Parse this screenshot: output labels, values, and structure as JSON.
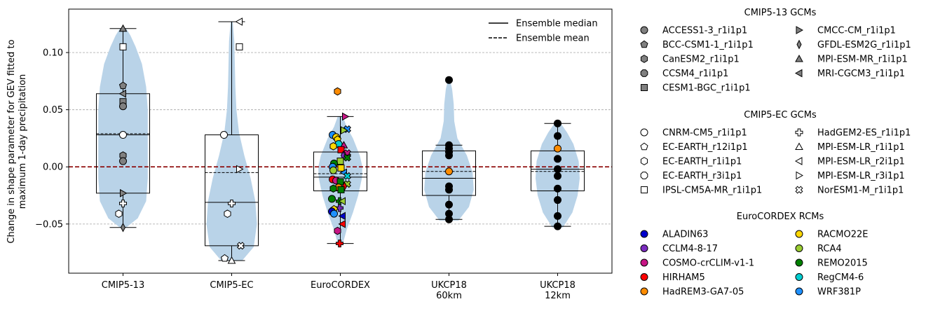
{
  "chart_data": {
    "type": "violin",
    "ylabel_line1": "Change in shape parameter for GEV fitted to",
    "ylabel_line2": "maximum 1-day precipitation",
    "categories": [
      {
        "label": "CMIP5-13",
        "label2": ""
      },
      {
        "label": "CMIP5-EC",
        "label2": ""
      },
      {
        "label": "EuroCORDEX",
        "label2": ""
      },
      {
        "label": "UKCP18",
        "label2": "60km"
      },
      {
        "label": "UKCP18",
        "label2": "12km"
      }
    ],
    "ylim": [
      -0.093,
      0.138
    ],
    "yticks": [
      -0.05,
      0.0,
      0.05,
      0.1
    ],
    "ytick_labels": [
      "−0.05",
      "0.00",
      "0.05",
      "0.10"
    ],
    "grid": "horizontal dashed",
    "zero_line_color": "#8b0000",
    "violin_color": "#b9d3e8",
    "boxes": [
      {
        "q1": -0.023,
        "median": 0.028,
        "mean": 0.029,
        "q3": 0.064,
        "whislo": -0.053,
        "whishi": 0.121
      },
      {
        "q1": -0.069,
        "median": -0.031,
        "mean": -0.005,
        "q3": 0.028,
        "whislo": -0.082,
        "whishi": 0.127
      },
      {
        "q1": -0.021,
        "median": -0.009,
        "mean": -0.006,
        "q3": 0.013,
        "whislo": -0.067,
        "whishi": 0.044
      },
      {
        "q1": -0.025,
        "median": -0.01,
        "mean": -0.004,
        "q3": 0.014,
        "whislo": -0.046,
        "whishi": 0.019
      },
      {
        "q1": -0.021,
        "median": -0.002,
        "mean": -0.004,
        "q3": 0.014,
        "whislo": -0.052,
        "whishi": 0.038
      }
    ],
    "violins": [
      {
        "ys": [
          -0.053,
          -0.045,
          -0.03,
          -0.01,
          0.01,
          0.03,
          0.05,
          0.07,
          0.09,
          0.105,
          0.115,
          0.121
        ],
        "ws": [
          0.06,
          0.28,
          0.44,
          0.47,
          0.47,
          0.47,
          0.47,
          0.44,
          0.36,
          0.24,
          0.14,
          0.06
        ]
      },
      {
        "ys": [
          -0.082,
          -0.07,
          -0.05,
          -0.03,
          -0.01,
          0.01,
          0.03,
          0.05,
          0.07,
          0.09,
          0.11,
          0.127
        ],
        "ws": [
          0.2,
          0.42,
          0.48,
          0.45,
          0.36,
          0.24,
          0.14,
          0.09,
          0.07,
          0.06,
          0.05,
          0.02
        ]
      },
      {
        "ys": [
          -0.067,
          -0.055,
          -0.04,
          -0.025,
          -0.01,
          0.0,
          0.01,
          0.025,
          0.035,
          0.044
        ],
        "ws": [
          0.05,
          0.12,
          0.24,
          0.34,
          0.41,
          0.42,
          0.37,
          0.24,
          0.12,
          0.05
        ]
      },
      {
        "ys": [
          -0.047,
          -0.035,
          -0.02,
          -0.005,
          0.01,
          0.025,
          0.04,
          0.055,
          0.068,
          0.076
        ],
        "ws": [
          0.18,
          0.38,
          0.47,
          0.45,
          0.34,
          0.16,
          0.1,
          0.09,
          0.06,
          0.02
        ]
      },
      {
        "ys": [
          -0.053,
          -0.04,
          -0.025,
          -0.01,
          0.005,
          0.02,
          0.03,
          0.038
        ],
        "ws": [
          0.1,
          0.28,
          0.38,
          0.42,
          0.4,
          0.3,
          0.18,
          0.06
        ]
      }
    ],
    "points": [
      [
        {
          "y": 0.121,
          "marker": "tri_up",
          "fill": "#808080"
        },
        {
          "y": 0.105,
          "marker": "square",
          "fill": "#ffffff"
        },
        {
          "y": 0.071,
          "marker": "pentagon",
          "fill": "#808080"
        },
        {
          "y": 0.064,
          "marker": "tri_left",
          "fill": "#808080"
        },
        {
          "y": 0.057,
          "marker": "square",
          "fill": "#808080"
        },
        {
          "y": 0.053,
          "marker": "circle",
          "fill": "#808080"
        },
        {
          "y": 0.028,
          "marker": "circle",
          "fill": "#ffffff"
        },
        {
          "y": 0.01,
          "marker": "hexagon",
          "fill": "#808080"
        },
        {
          "y": 0.005,
          "marker": "circle",
          "fill": "#808080"
        },
        {
          "y": -0.023,
          "marker": "tri_right",
          "fill": "#808080"
        },
        {
          "y": -0.032,
          "marker": "plus",
          "fill": "#ffffff"
        },
        {
          "y": -0.041,
          "marker": "hexagon",
          "fill": "#ffffff",
          "dx": -0.12
        },
        {
          "y": -0.053,
          "marker": "diamond",
          "fill": "#808080"
        }
      ],
      [
        {
          "y": 0.127,
          "marker": "tri_left",
          "fill": "#ffffff",
          "dx": 0.22
        },
        {
          "y": 0.105,
          "marker": "square",
          "fill": "#ffffff",
          "dx": 0.22
        },
        {
          "y": 0.028,
          "marker": "circle",
          "fill": "#ffffff",
          "dx": -0.22
        },
        {
          "y": -0.002,
          "marker": "tri_right",
          "fill": "#ffffff",
          "dx": 0.22
        },
        {
          "y": -0.032,
          "marker": "plus",
          "fill": "#ffffff",
          "dx": 0.0
        },
        {
          "y": -0.041,
          "marker": "hexagon",
          "fill": "#ffffff",
          "dx": -0.12
        },
        {
          "y": -0.069,
          "marker": "cross",
          "fill": "#ffffff",
          "dx": 0.26
        },
        {
          "y": -0.08,
          "marker": "pentagon",
          "fill": "#ffffff",
          "dx": -0.2
        },
        {
          "y": -0.082,
          "marker": "tri_up",
          "fill": "#ffffff",
          "dx": 0.0
        }
      ],
      [
        {
          "y": 0.066,
          "marker": "hexagon",
          "fill": "#ff8c00",
          "dx": -0.08
        },
        {
          "y": 0.044,
          "marker": "tri_right",
          "fill": "#c71585",
          "dx": 0.14
        },
        {
          "y": 0.033,
          "marker": "cross",
          "fill": "#1e90ff",
          "dx": 0.2
        },
        {
          "y": 0.032,
          "marker": "tri_right",
          "fill": "#9acd32",
          "dx": 0.1
        },
        {
          "y": 0.028,
          "marker": "circle",
          "fill": "#1e90ff",
          "dx": -0.22
        },
        {
          "y": 0.026,
          "marker": "circle",
          "fill": "#ffd700",
          "dx": -0.12
        },
        {
          "y": 0.024,
          "marker": "pentagon",
          "fill": "#ffd700",
          "dx": -0.08
        },
        {
          "y": 0.02,
          "marker": "circle",
          "fill": "#00ced1",
          "dx": -0.05
        },
        {
          "y": 0.019,
          "marker": "tri_up",
          "fill": "#c71585",
          "dx": 0.1
        },
        {
          "y": 0.018,
          "marker": "hexagon",
          "fill": "#ffd700",
          "dx": -0.2
        },
        {
          "y": 0.015,
          "marker": "square",
          "fill": "#ff0000",
          "dx": 0.02
        },
        {
          "y": 0.012,
          "marker": "cross",
          "fill": "#c71585",
          "dx": 0.2
        },
        {
          "y": 0.01,
          "marker": "diamond",
          "fill": "#7b2cbf",
          "dx": 0.08
        },
        {
          "y": 0.008,
          "marker": "cross",
          "fill": "#008000",
          "dx": 0.2
        },
        {
          "y": 0.005,
          "marker": "square",
          "fill": "#9acd32",
          "dx": 0.0
        },
        {
          "y": 0.003,
          "marker": "circle",
          "fill": "#008000",
          "dx": -0.18
        },
        {
          "y": 0.0,
          "marker": "circle",
          "fill": "#1e90ff",
          "dx": -0.22
        },
        {
          "y": -0.001,
          "marker": "square",
          "fill": "#ffd700",
          "dx": 0.02
        },
        {
          "y": -0.003,
          "marker": "circle",
          "fill": "#9acd32",
          "dx": -0.2
        },
        {
          "y": -0.005,
          "marker": "tri_left",
          "fill": "#1e90ff",
          "dx": 0.1
        },
        {
          "y": -0.008,
          "marker": "cross",
          "fill": "#00ced1",
          "dx": 0.2
        },
        {
          "y": -0.011,
          "marker": "circle",
          "fill": "#ff0000",
          "dx": -0.22
        },
        {
          "y": -0.012,
          "marker": "circle",
          "fill": "#c71585",
          "dx": -0.12
        },
        {
          "y": -0.013,
          "marker": "square",
          "fill": "#008000",
          "dx": 0.0
        },
        {
          "y": -0.015,
          "marker": "cross",
          "fill": "#9acd32",
          "dx": 0.2
        },
        {
          "y": -0.017,
          "marker": "diamond",
          "fill": "#ff0000",
          "dx": 0.12
        },
        {
          "y": -0.018,
          "marker": "circle",
          "fill": "#ff8c00",
          "dx": -0.05
        },
        {
          "y": -0.019,
          "marker": "hexagon",
          "fill": "#008000",
          "dx": -0.2
        },
        {
          "y": -0.02,
          "marker": "square",
          "fill": "#008000",
          "dx": 0.02
        },
        {
          "y": -0.028,
          "marker": "circle",
          "fill": "#008000",
          "dx": -0.24
        },
        {
          "y": -0.03,
          "marker": "plus",
          "fill": "#008000",
          "dx": -0.02
        },
        {
          "y": -0.03,
          "marker": "tri_left",
          "fill": "#9acd32",
          "dx": 0.06
        },
        {
          "y": -0.036,
          "marker": "plus",
          "fill": "#7b2cbf",
          "dx": -0.02
        },
        {
          "y": -0.037,
          "marker": "pentagon",
          "fill": "#ffd700",
          "dx": -0.18
        },
        {
          "y": -0.039,
          "marker": "circle",
          "fill": "#0000cd",
          "dx": -0.24
        },
        {
          "y": -0.041,
          "marker": "circle",
          "fill": "#1e90ff",
          "dx": -0.18
        },
        {
          "y": -0.043,
          "marker": "tri_left",
          "fill": "#0000cd",
          "dx": 0.06
        },
        {
          "y": -0.05,
          "marker": "tri_left",
          "fill": "#ff0000",
          "dx": 0.06
        },
        {
          "y": -0.056,
          "marker": "hexagon",
          "fill": "#c71585",
          "dx": -0.08
        },
        {
          "y": -0.067,
          "marker": "plus",
          "fill": "#ff0000",
          "dx": -0.02
        }
      ],
      [
        {
          "y": 0.076,
          "marker": "circle",
          "fill": "#000000"
        },
        {
          "y": 0.019,
          "marker": "circle",
          "fill": "#000000"
        },
        {
          "y": 0.016,
          "marker": "circle",
          "fill": "#000000"
        },
        {
          "y": 0.013,
          "marker": "circle",
          "fill": "#000000"
        },
        {
          "y": 0.01,
          "marker": "circle",
          "fill": "#000000"
        },
        {
          "y": -0.004,
          "marker": "circle",
          "fill": "#ff8c00"
        },
        {
          "y": -0.017,
          "marker": "circle",
          "fill": "#000000"
        },
        {
          "y": -0.02,
          "marker": "circle",
          "fill": "#000000"
        },
        {
          "y": -0.033,
          "marker": "circle",
          "fill": "#000000"
        },
        {
          "y": -0.041,
          "marker": "circle",
          "fill": "#000000"
        },
        {
          "y": -0.046,
          "marker": "circle",
          "fill": "#000000"
        }
      ],
      [
        {
          "y": 0.038,
          "marker": "circle",
          "fill": "#000000"
        },
        {
          "y": 0.027,
          "marker": "circle",
          "fill": "#000000"
        },
        {
          "y": 0.016,
          "marker": "circle",
          "fill": "#ff8c00"
        },
        {
          "y": 0.007,
          "marker": "circle",
          "fill": "#000000"
        },
        {
          "y": -0.002,
          "marker": "circle",
          "fill": "#000000"
        },
        {
          "y": -0.008,
          "marker": "circle",
          "fill": "#000000"
        },
        {
          "y": -0.019,
          "marker": "circle",
          "fill": "#000000"
        },
        {
          "y": -0.029,
          "marker": "circle",
          "fill": "#000000"
        },
        {
          "y": -0.043,
          "marker": "circle",
          "fill": "#000000"
        },
        {
          "y": -0.052,
          "marker": "circle",
          "fill": "#000000"
        }
      ]
    ],
    "inner_legend": [
      {
        "label": "Ensemble median",
        "style": "solid"
      },
      {
        "label": "Ensemble mean",
        "style": "dashed"
      }
    ],
    "legend_groups": [
      {
        "title": "CMIP5-13 GCMs",
        "entries": [
          {
            "label": "ACCESS1-3_r1i1p1",
            "marker": "circle",
            "fill": "#808080"
          },
          {
            "label": "BCC-CSM1-1_r1i1p1",
            "marker": "pentagon",
            "fill": "#808080"
          },
          {
            "label": "CanESM2_r1i1p1",
            "marker": "hexagon",
            "fill": "#808080"
          },
          {
            "label": "CCSM4_r1i1p1",
            "marker": "octagon",
            "fill": "#808080"
          },
          {
            "label": "CESM1-BGC_r1i1p1",
            "marker": "square",
            "fill": "#808080"
          },
          {
            "label": "CMCC-CM_r1i1p1",
            "marker": "tri_right",
            "fill": "#808080"
          },
          {
            "label": "GFDL-ESM2G_r1i1p1",
            "marker": "diamond",
            "fill": "#808080"
          },
          {
            "label": "MPI-ESM-MR_r1i1p1",
            "marker": "tri_up",
            "fill": "#808080"
          },
          {
            "label": "MRI-CGCM3_r1i1p1",
            "marker": "tri_left",
            "fill": "#808080"
          }
        ]
      },
      {
        "title": "CMIP5-EC GCMs",
        "entries": [
          {
            "label": "CNRM-CM5_r1i1p1",
            "marker": "circle",
            "fill": "#ffffff"
          },
          {
            "label": "EC-EARTH_r12i1p1",
            "marker": "pentagon",
            "fill": "#ffffff"
          },
          {
            "label": "EC-EARTH_r1i1p1",
            "marker": "hexagon",
            "fill": "#ffffff"
          },
          {
            "label": "EC-EARTH_r3i1p1",
            "marker": "octagon",
            "fill": "#ffffff"
          },
          {
            "label": "IPSL-CM5A-MR_r1i1p1",
            "marker": "square",
            "fill": "#ffffff"
          },
          {
            "label": "HadGEM2-ES_r1i1p1",
            "marker": "plus",
            "fill": "#ffffff"
          },
          {
            "label": "MPI-ESM-LR_r1i1p1",
            "marker": "tri_up",
            "fill": "#ffffff"
          },
          {
            "label": "MPI-ESM-LR_r2i1p1",
            "marker": "tri_left",
            "fill": "#ffffff"
          },
          {
            "label": "MPI-ESM-LR_r3i1p1",
            "marker": "tri_right",
            "fill": "#ffffff"
          },
          {
            "label": "NorESM1-M_r1i1p1",
            "marker": "cross",
            "fill": "#ffffff"
          }
        ]
      },
      {
        "title": "EuroCORDEX RCMs",
        "entries": [
          {
            "label": "ALADIN63",
            "marker": "circle",
            "fill": "#0000cd"
          },
          {
            "label": "CCLM4-8-17",
            "marker": "circle",
            "fill": "#7b2cbf"
          },
          {
            "label": "COSMO-crCLIM-v1-1",
            "marker": "circle",
            "fill": "#c71585"
          },
          {
            "label": "HIRHAM5",
            "marker": "circle",
            "fill": "#ff0000"
          },
          {
            "label": "HadREM3-GA7-05",
            "marker": "circle",
            "fill": "#ff8c00"
          },
          {
            "label": "RACMO22E",
            "marker": "circle",
            "fill": "#ffd700"
          },
          {
            "label": "RCA4",
            "marker": "circle",
            "fill": "#9acd32"
          },
          {
            "label": "REMO2015",
            "marker": "circle",
            "fill": "#008000"
          },
          {
            "label": "RegCM4-6",
            "marker": "circle",
            "fill": "#00ced1"
          },
          {
            "label": "WRF381P",
            "marker": "circle",
            "fill": "#1e90ff"
          }
        ]
      }
    ]
  }
}
